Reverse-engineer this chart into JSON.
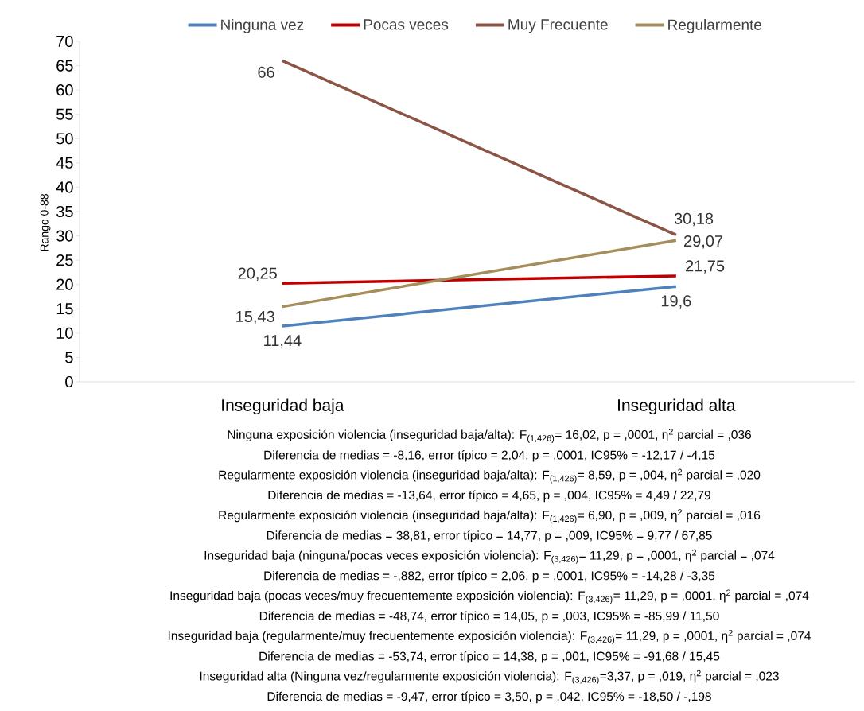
{
  "chart_data": {
    "type": "line",
    "ylabel": "Rango 0-88",
    "categories": [
      "Inseguridad baja",
      "Inseguridad alta"
    ],
    "series": [
      {
        "name": "Ninguna vez",
        "color": "#4f81bd",
        "values": [
          11.44,
          19.6
        ],
        "value_labels": [
          "11,44",
          "19,6"
        ]
      },
      {
        "name": "Pocas veces",
        "color": "#c00000",
        "values": [
          20.25,
          21.75
        ],
        "value_labels": [
          "20,25",
          "21,75"
        ]
      },
      {
        "name": "Muy Frecuente",
        "color": "#8c5444",
        "values": [
          66,
          30.18
        ],
        "value_labels": [
          "66",
          "30,18"
        ]
      },
      {
        "name": "Regularmente",
        "color": "#a58e5c",
        "values": [
          15.43,
          29.07
        ],
        "value_labels": [
          "15,43",
          "29,07"
        ]
      }
    ],
    "ylim": [
      0,
      70
    ],
    "yticks": [
      0,
      5,
      10,
      15,
      20,
      25,
      30,
      35,
      40,
      45,
      50,
      55,
      60,
      65,
      70
    ],
    "grid": false,
    "legend": "top",
    "line_style": "solid",
    "annotations": [
      "Ninguna exposición violencia (inseguridad baja/alta): F$_{(1,426)}$= 16,02, p = ,0001, η$^{2}$ parcial = ,036",
      "Diferencia de medias = -8,16, error típico = 2,04, p = ,0001, IC95% = -12,17 / -4,15",
      "Regularmente exposición violencia (inseguridad baja/alta): F$_{(1,426)}$= 8,59, p = ,004, η$^{2}$ parcial = ,020",
      "Diferencia de medias = -13,64, error típico = 4,65, p = ,004, IC95% = 4,49 / 22,79",
      "Regularmente exposición violencia (inseguridad baja/alta): F$_{(1,426)}$= 6,90, p = ,009, η$^{2}$ parcial = ,016",
      "Diferencia de medias = 38,81, error típico = 14,77, p = ,009, IC95% = 9,77 / 67,85",
      "Inseguridad baja (ninguna/pocas veces exposición violencia): F$_{(3,426)}$= 11,29, p = ,0001, η$^{2}$ parcial = ,074",
      "Diferencia de medias = -,882, error típico = 2,06, p = ,0001, IC95% = -14,28 / -3,35",
      "Inseguridad baja (pocas veces/muy frecuentemente exposición violencia): F$_{(3,426)}$= 11,29, p = ,0001, η$^{2}$ parcial = ,074",
      "Diferencia de medias = -48,74, error típico = 14,05, p = ,003, IC95% = -85,99 / 11,50",
      "Inseguridad baja (regularmente/muy frecuentemente exposición violencia): F$_{(3,426)}$= 11,29, p = ,0001, η$^{2}$ parcial = ,074",
      "Diferencia de medias = -53,74, error típico = 14,38, p = ,001, IC95% = -91,68 / 15,45",
      "Inseguridad alta (Ninguna vez/regularmente exposición violencia): F$_{(3,426)}$=3,37, p = ,019, η$^{2}$ parcial = ,023",
      "Diferencia de medias = -9,47, error típico = 3,50, p = ,042, IC95% = -18,50 / -,198"
    ]
  }
}
